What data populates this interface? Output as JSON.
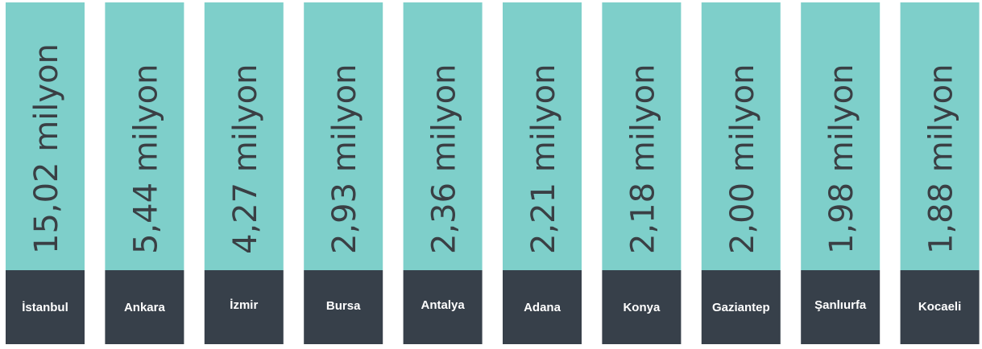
{
  "cards": [
    {
      "city": "İstanbul",
      "population": "15,02 milyon"
    },
    {
      "city": "Ankara",
      "population": "5,44 milyon"
    },
    {
      "city": "İzmir",
      "population": "4,27 milyon"
    },
    {
      "city": "Bursa",
      "population": "2,93 milyon"
    },
    {
      "city": "Antalya",
      "population": "2,36 milyon"
    },
    {
      "city": "Adana",
      "population": "2,21 milyon"
    },
    {
      "city": "Konya",
      "population": "2,18 milyon"
    },
    {
      "city": "Gaziantep",
      "population": "2,00 milyon"
    },
    {
      "city": "Şanlıurfa",
      "population": "1,98 milyon"
    },
    {
      "city": "Kocaeli",
      "population": "1,88 milyon"
    }
  ]
}
